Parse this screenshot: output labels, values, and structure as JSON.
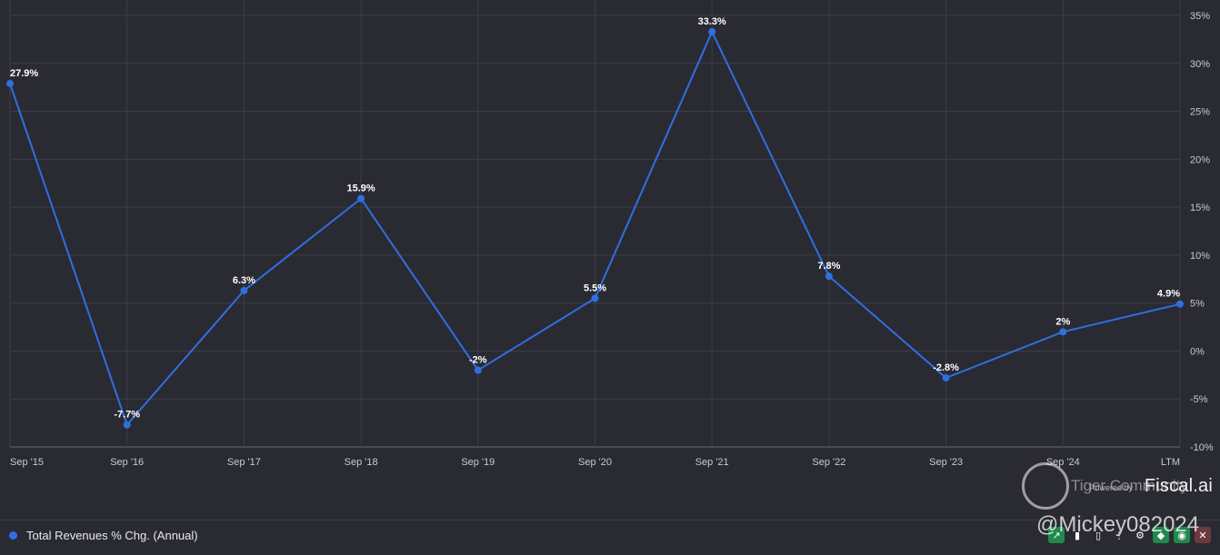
{
  "chart_data": {
    "type": "line",
    "categories": [
      "Sep '15",
      "Sep '16",
      "Sep '17",
      "Sep '18",
      "Sep '19",
      "Sep '20",
      "Sep '21",
      "Sep '22",
      "Sep '23",
      "Sep '24",
      "LTM"
    ],
    "series": [
      {
        "name": "Total Revenues % Chg. (Annual)",
        "values": [
          27.9,
          -7.7,
          6.3,
          15.9,
          -2.0,
          5.5,
          33.3,
          7.8,
          -2.8,
          2.0,
          4.9
        ],
        "data_labels": [
          "27.9%",
          "-7.7%",
          "6.3%",
          "15.9%",
          "-2%",
          "5.5%",
          "33.3%",
          "7.8%",
          "-2.8%",
          "2%",
          "4.9%"
        ],
        "color": "#2f6fe0"
      }
    ],
    "ylim": [
      -10,
      35
    ],
    "yticks": [
      35,
      30,
      25,
      20,
      15,
      10,
      5,
      0,
      -5,
      -10
    ],
    "ytick_labels": [
      "35%",
      "30%",
      "25%",
      "20%",
      "15%",
      "10%",
      "5%",
      "0%",
      "-5%",
      "-10%"
    ],
    "y_axis_side": "right",
    "grid": true,
    "legend_position": "bottom-left"
  },
  "legend": {
    "label": "Total Revenues % Chg. (Annual)",
    "color": "#2f6fe0"
  },
  "branding": {
    "powered_by": "Powered by",
    "name": "Fiscal.ai"
  },
  "watermark": {
    "line1": "Tiger Community",
    "line2": "@Mickey082024"
  },
  "toolbar": [
    {
      "icon": "line-chart-icon",
      "color": "#1e8a4c",
      "glyph": "↗"
    },
    {
      "icon": "bar-chart-icon",
      "color": "transparent",
      "glyph": "▮"
    },
    {
      "icon": "stacked-bar-icon",
      "color": "transparent",
      "glyph": "▯"
    },
    {
      "icon": "ellipsis-icon",
      "color": "transparent",
      "glyph": "⋮"
    },
    {
      "icon": "gear-icon",
      "color": "transparent",
      "glyph": "⚙"
    },
    {
      "icon": "tag-icon",
      "color": "#1e8a4c",
      "glyph": "◆"
    },
    {
      "icon": "eye-icon",
      "color": "#1e8a4c",
      "glyph": "◉"
    },
    {
      "icon": "close-icon",
      "color": "#6a3a3e",
      "glyph": "✕"
    }
  ]
}
